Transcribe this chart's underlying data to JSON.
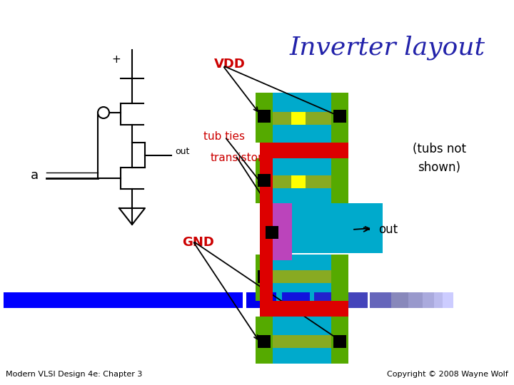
{
  "title": "Inverter layout",
  "title_color": "#2222aa",
  "title_fontsize": 26,
  "footer_left": "Modern VLSI Design 4e: Chapter 3",
  "footer_right": "Copyright © 2008 Wayne Wolf",
  "footer_fontsize": 8,
  "label_vdd": "VDD",
  "label_gnd": "GND",
  "label_a": "a",
  "label_out_schematic": "out",
  "label_out_layout": "out",
  "label_tub_ties": "tub ties",
  "label_transistors": "transistors",
  "label_tubs_not_shown": "(tubs not\nshown)",
  "label_plus": "+",
  "red_label_color": "#cc0000",
  "cyan": "#00aacc",
  "green": "#55aa00",
  "red": "#dd0000",
  "yellow": "#ffff00",
  "magenta": "#bb44bb",
  "black": "#000000",
  "olive": "#88aa22",
  "gray_green": "#88aa88"
}
